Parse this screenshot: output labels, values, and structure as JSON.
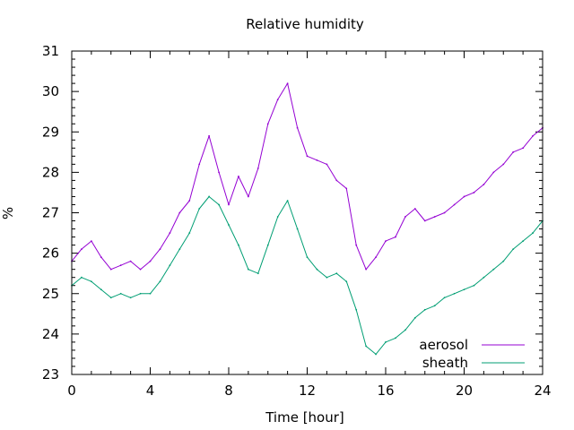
{
  "chart_data": {
    "type": "line",
    "title": "Relative humidity",
    "xlabel": "Time [hour]",
    "ylabel": "%",
    "xlim": [
      0,
      24
    ],
    "ylim": [
      23,
      31
    ],
    "x_ticks": [
      "0",
      "4",
      "8",
      "12",
      "16",
      "20",
      "24"
    ],
    "y_ticks": [
      "23",
      "24",
      "25",
      "26",
      "27",
      "28",
      "29",
      "30",
      "31"
    ],
    "grid": false,
    "legend_position": "bottom-right",
    "series": [
      {
        "name": "aerosol",
        "color": "#9400d3",
        "x": [
          0,
          0.5,
          1,
          1.5,
          2,
          2.5,
          3,
          3.5,
          4,
          4.5,
          5,
          5.5,
          6,
          6.5,
          7,
          7.5,
          8,
          8.5,
          9,
          9.5,
          10,
          10.5,
          11,
          11.5,
          12,
          12.5,
          13,
          13.5,
          14,
          14.5,
          15,
          15.5,
          16,
          16.5,
          17,
          17.5,
          18,
          18.5,
          19,
          19.5,
          20,
          20.5,
          21,
          21.5,
          22,
          22.5,
          23,
          23.5,
          24
        ],
        "y": [
          25.8,
          26.1,
          26.3,
          25.9,
          25.6,
          25.7,
          25.8,
          25.6,
          25.8,
          26.1,
          26.5,
          27.0,
          27.3,
          28.2,
          28.9,
          28.0,
          27.2,
          27.9,
          27.4,
          28.1,
          29.2,
          29.8,
          30.2,
          29.1,
          28.4,
          28.3,
          28.2,
          27.8,
          27.6,
          26.2,
          25.6,
          25.9,
          26.3,
          26.4,
          26.9,
          27.1,
          26.8,
          26.9,
          27.0,
          27.2,
          27.4,
          27.5,
          27.7,
          28.0,
          28.2,
          28.5,
          28.6,
          28.9,
          29.1
        ]
      },
      {
        "name": "sheath",
        "color": "#009e73",
        "x": [
          0,
          0.5,
          1,
          1.5,
          2,
          2.5,
          3,
          3.5,
          4,
          4.5,
          5,
          5.5,
          6,
          6.5,
          7,
          7.5,
          8,
          8.5,
          9,
          9.5,
          10,
          10.5,
          11,
          11.5,
          12,
          12.5,
          13,
          13.5,
          14,
          14.5,
          15,
          15.5,
          16,
          16.5,
          17,
          17.5,
          18,
          18.5,
          19,
          19.5,
          20,
          20.5,
          21,
          21.5,
          22,
          22.5,
          23,
          23.5,
          24
        ],
        "y": [
          25.2,
          25.4,
          25.3,
          25.1,
          24.9,
          25.0,
          24.9,
          25.0,
          25.0,
          25.3,
          25.7,
          26.1,
          26.5,
          27.1,
          27.4,
          27.2,
          26.7,
          26.2,
          25.6,
          25.5,
          26.2,
          26.9,
          27.3,
          26.6,
          25.9,
          25.6,
          25.4,
          25.5,
          25.3,
          24.6,
          23.7,
          23.5,
          23.8,
          23.9,
          24.1,
          24.4,
          24.6,
          24.7,
          24.9,
          25.0,
          25.1,
          25.2,
          25.4,
          25.6,
          25.8,
          26.1,
          26.3,
          26.5,
          26.8
        ]
      }
    ]
  }
}
